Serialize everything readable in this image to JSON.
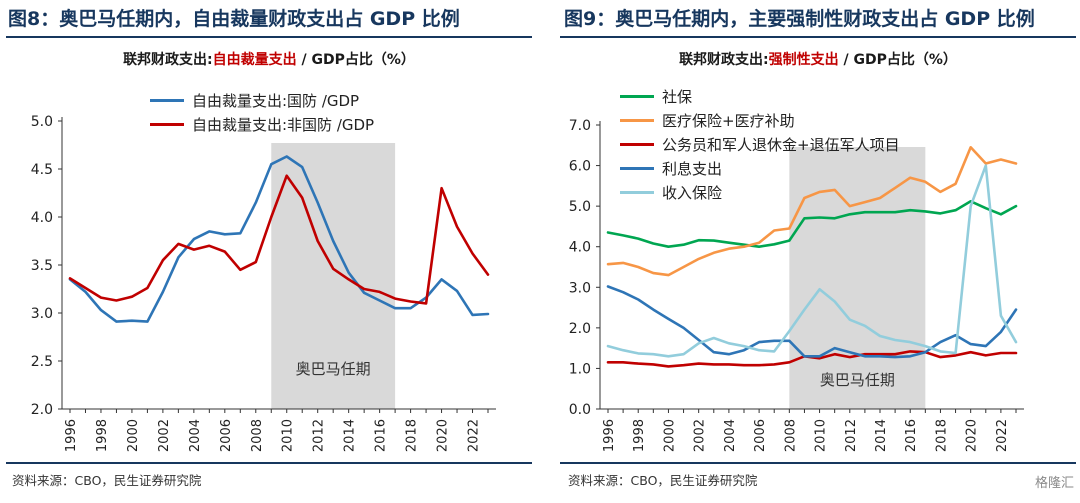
{
  "panels": [
    {
      "figure_title": "图8：奥巴马任期内，自由裁量财政支出占 GDP 比例",
      "subtitle": {
        "prefix": "联邦财政支出:",
        "highlight": "自由裁量支出",
        "suffix": " / GDP占比（%）"
      },
      "source": "资料来源：CBO，民生证券研究院",
      "colors": {
        "shade": "#d9d9d9"
      },
      "chart_data": {
        "type": "line",
        "xlabel": "",
        "ylabel": "",
        "ylim": [
          2.0,
          5.0
        ],
        "yticks": [
          "2.0",
          "2.5",
          "3.0",
          "3.5",
          "4.0",
          "4.5",
          "5.0"
        ],
        "xlim": [
          1996,
          2023
        ],
        "xticks": [
          "1996",
          "1998",
          "2000",
          "2002",
          "2004",
          "2006",
          "2008",
          "2010",
          "2012",
          "2014",
          "2016",
          "2018",
          "2020",
          "2022"
        ],
        "grid": false,
        "legend_position": "top",
        "shade": {
          "x0": 2009,
          "x1": 2017,
          "label": "奥巴马任期"
        },
        "x": [
          1996,
          1997,
          1998,
          1999,
          2000,
          2001,
          2002,
          2003,
          2004,
          2005,
          2006,
          2007,
          2008,
          2009,
          2010,
          2011,
          2012,
          2013,
          2014,
          2015,
          2016,
          2017,
          2018,
          2019,
          2020,
          2021,
          2022,
          2023
        ],
        "series": [
          {
            "name": "自由裁量支出:国防 /GDP",
            "color": "#2e75b6",
            "values": [
              3.35,
              3.22,
              3.03,
              2.91,
              2.92,
              2.91,
              3.22,
              3.58,
              3.77,
              3.85,
              3.82,
              3.83,
              4.15,
              4.55,
              4.63,
              4.52,
              4.15,
              3.75,
              3.42,
              3.21,
              3.13,
              3.05,
              3.05,
              3.16,
              3.35,
              3.23,
              2.98,
              2.99
            ]
          },
          {
            "name": "自由裁量支出:非国防 /GDP",
            "color": "#c00000",
            "values": [
              3.36,
              3.26,
              3.16,
              3.13,
              3.17,
              3.26,
              3.55,
              3.72,
              3.66,
              3.7,
              3.64,
              3.45,
              3.53,
              4.0,
              4.43,
              4.2,
              3.75,
              3.46,
              3.35,
              3.25,
              3.22,
              3.15,
              3.12,
              3.1,
              4.3,
              3.9,
              3.62,
              3.4
            ]
          }
        ]
      }
    },
    {
      "figure_title": "图9：奥巴马任期内，主要强制性财政支出占 GDP 比例",
      "subtitle": {
        "prefix": "联邦财政支出:",
        "highlight": "强制性支出",
        "suffix": " / GDP占比（%）"
      },
      "source": "资料来源：CBO，民生证券研究院",
      "colors": {
        "shade": "#d9d9d9"
      },
      "chart_data": {
        "type": "line",
        "xlabel": "",
        "ylabel": "",
        "ylim": [
          0.0,
          7.0
        ],
        "yticks": [
          "0.0",
          "1.0",
          "2.0",
          "3.0",
          "4.0",
          "5.0",
          "6.0",
          "7.0"
        ],
        "xlim": [
          1996,
          2023
        ],
        "xticks": [
          "1996",
          "1998",
          "2000",
          "2002",
          "2004",
          "2006",
          "2008",
          "2010",
          "2012",
          "2014",
          "2016",
          "2018",
          "2020",
          "2022"
        ],
        "grid": false,
        "legend_position": "top-left",
        "shade": {
          "x0": 2008,
          "x1": 2017,
          "label": "奥巴马任期"
        },
        "x": [
          1996,
          1997,
          1998,
          1999,
          2000,
          2001,
          2002,
          2003,
          2004,
          2005,
          2006,
          2007,
          2008,
          2009,
          2010,
          2011,
          2012,
          2013,
          2014,
          2015,
          2016,
          2017,
          2018,
          2019,
          2020,
          2021,
          2022,
          2023
        ],
        "series": [
          {
            "name": "社保",
            "color": "#00a651",
            "values": [
              4.35,
              4.28,
              4.2,
              4.08,
              4.0,
              4.05,
              4.16,
              4.15,
              4.1,
              4.05,
              4.0,
              4.06,
              4.15,
              4.7,
              4.72,
              4.7,
              4.8,
              4.85,
              4.85,
              4.85,
              4.9,
              4.87,
              4.82,
              4.9,
              5.12,
              4.95,
              4.8,
              5.0
            ]
          },
          {
            "name": "医疗保险+医疗补助",
            "color": "#f79646",
            "values": [
              3.57,
              3.6,
              3.5,
              3.35,
              3.3,
              3.5,
              3.7,
              3.85,
              3.95,
              4.0,
              4.1,
              4.4,
              4.45,
              5.2,
              5.35,
              5.4,
              5.0,
              5.1,
              5.2,
              5.45,
              5.7,
              5.6,
              5.35,
              5.55,
              6.45,
              6.05,
              6.15,
              6.05
            ]
          },
          {
            "name": "公务员和军人退休金+退伍军人项目",
            "color": "#c00000",
            "values": [
              1.15,
              1.15,
              1.12,
              1.1,
              1.05,
              1.08,
              1.12,
              1.1,
              1.1,
              1.08,
              1.08,
              1.1,
              1.15,
              1.3,
              1.25,
              1.35,
              1.28,
              1.35,
              1.35,
              1.35,
              1.42,
              1.4,
              1.28,
              1.32,
              1.4,
              1.32,
              1.38,
              1.38
            ]
          },
          {
            "name": "利息支出",
            "color": "#2e75b6",
            "values": [
              3.02,
              2.88,
              2.7,
              2.45,
              2.22,
              2.0,
              1.7,
              1.4,
              1.35,
              1.45,
              1.65,
              1.68,
              1.68,
              1.3,
              1.3,
              1.5,
              1.4,
              1.3,
              1.3,
              1.28,
              1.3,
              1.4,
              1.65,
              1.82,
              1.6,
              1.55,
              1.9,
              2.45
            ]
          },
          {
            "name": "收入保险",
            "color": "#92cddc",
            "values": [
              1.55,
              1.45,
              1.37,
              1.35,
              1.3,
              1.35,
              1.62,
              1.75,
              1.62,
              1.55,
              1.45,
              1.42,
              1.92,
              2.45,
              2.95,
              2.65,
              2.2,
              2.05,
              1.8,
              1.7,
              1.65,
              1.55,
              1.42,
              1.38,
              5.0,
              6.0,
              2.3,
              1.65
            ]
          }
        ]
      }
    }
  ],
  "watermark": "格隆汇"
}
